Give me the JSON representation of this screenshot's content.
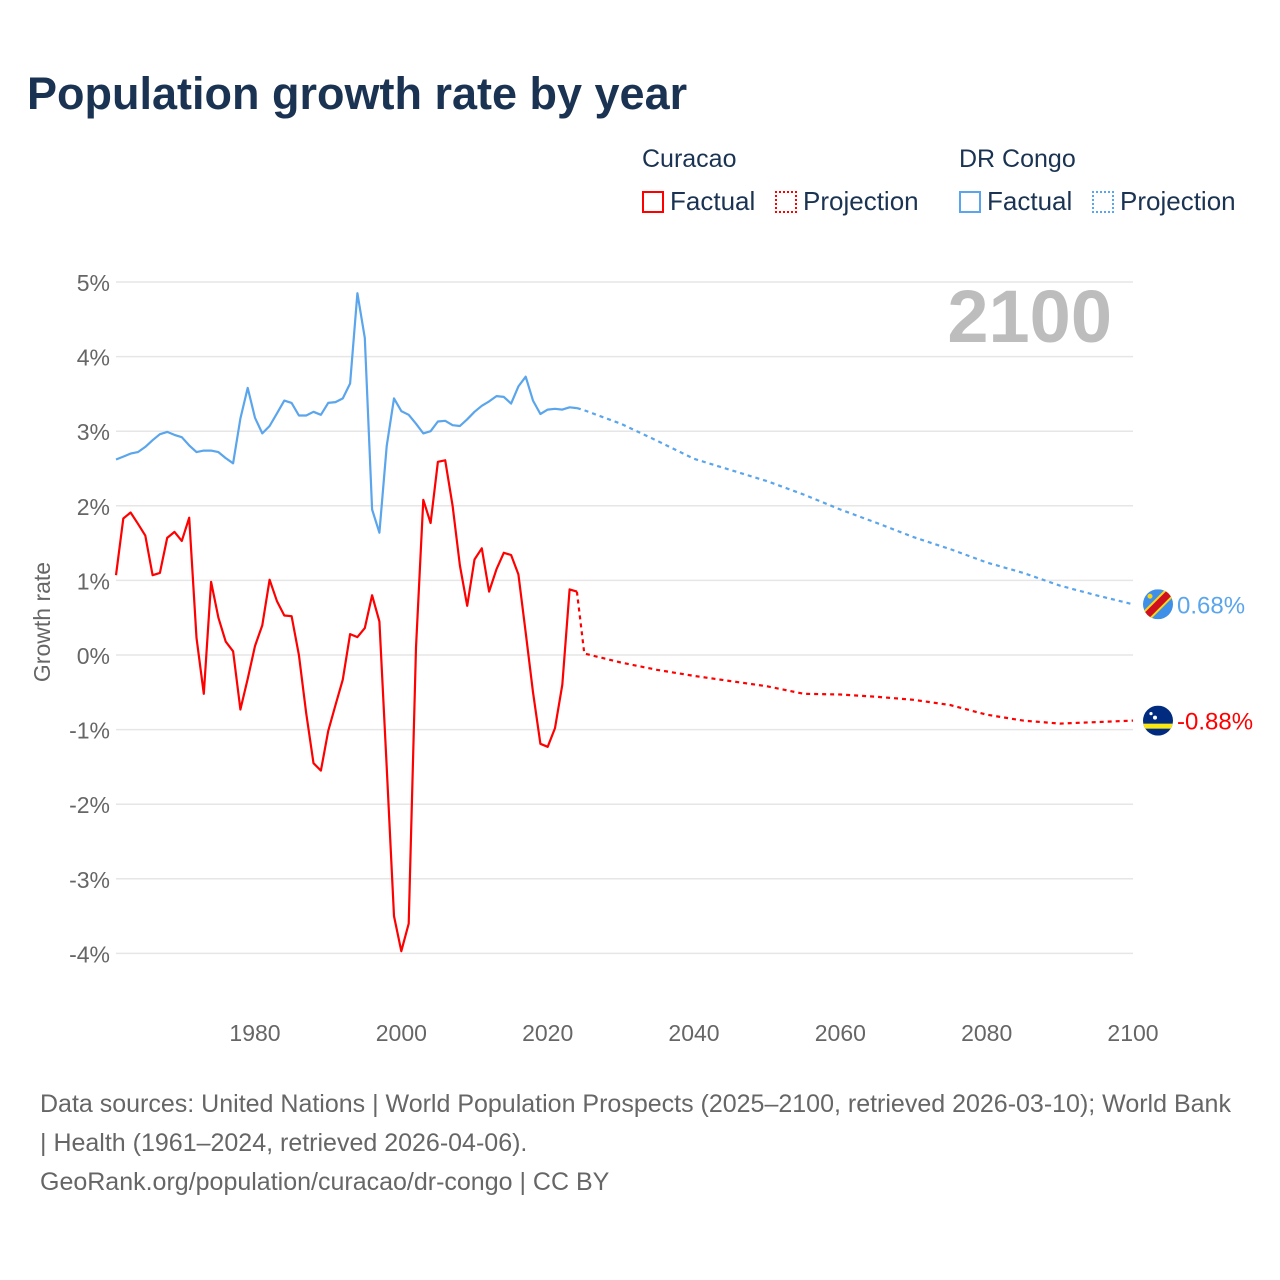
{
  "title": "Population growth rate by year",
  "legend": {
    "groups": [
      {
        "name": "Curacao",
        "color": "#ff0000",
        "factual": "Factual",
        "projection": "Projection"
      },
      {
        "name": "DR Congo",
        "color": "#5aa5ec",
        "factual": "Factual",
        "projection": "Projection"
      }
    ]
  },
  "chart_data": {
    "type": "line",
    "title": "Population growth rate by year",
    "ylabel": "Growth rate",
    "xlabel": "",
    "ylim": [
      -4.6,
      5
    ],
    "xlim": [
      1961,
      2100
    ],
    "yticks": [
      5,
      4,
      3,
      2,
      1,
      0,
      -1,
      -2,
      -3,
      -4
    ],
    "ytick_labels": [
      "5%",
      "4%",
      "3%",
      "2%",
      "1%",
      "0%",
      "-1%",
      "-2%",
      "-3%",
      "-4%"
    ],
    "xticks": [
      1980,
      2000,
      2020,
      2040,
      2060,
      2080,
      2100
    ],
    "xtick_labels": [
      "1980",
      "2000",
      "2020",
      "2040",
      "2060",
      "2080",
      "2100"
    ],
    "year_overlay": "2100",
    "grid": true,
    "series": [
      {
        "name": "Curacao Factual",
        "country": "Curacao",
        "kind": "factual",
        "color": "#ff0000",
        "x": [
          1961,
          1962,
          1963,
          1964,
          1965,
          1966,
          1967,
          1968,
          1969,
          1970,
          1971,
          1972,
          1973,
          1974,
          1975,
          1976,
          1977,
          1978,
          1979,
          1980,
          1981,
          1982,
          1983,
          1984,
          1985,
          1986,
          1987,
          1988,
          1989,
          1990,
          1991,
          1992,
          1993,
          1994,
          1995,
          1996,
          1997,
          1998,
          1999,
          2000,
          2001,
          2002,
          2003,
          2004,
          2005,
          2006,
          2007,
          2008,
          2009,
          2010,
          2011,
          2012,
          2013,
          2014,
          2015,
          2016,
          2017,
          2018,
          2019,
          2020,
          2021,
          2022,
          2023,
          2024
        ],
        "y": [
          1.07,
          1.83,
          1.91,
          1.76,
          1.6,
          1.07,
          1.1,
          1.57,
          1.65,
          1.53,
          1.84,
          0.23,
          -0.52,
          0.98,
          0.5,
          0.18,
          0.05,
          -0.73,
          -0.32,
          0.12,
          0.4,
          1.01,
          0.72,
          0.53,
          0.52,
          0.0,
          -0.78,
          -1.45,
          -1.55,
          -1.02,
          -0.67,
          -0.33,
          0.28,
          0.24,
          0.36,
          0.8,
          0.45,
          -1.5,
          -3.5,
          -3.97,
          -3.6,
          0.1,
          2.08,
          1.77,
          2.59,
          2.61,
          2.0,
          1.2,
          0.66,
          1.28,
          1.43,
          0.85,
          1.15,
          1.37,
          1.34,
          1.08,
          0.3,
          -0.5,
          -1.19,
          -1.23,
          -0.98,
          -0.4,
          0.88,
          0.85
        ]
      },
      {
        "name": "Curacao Projection",
        "country": "Curacao",
        "kind": "projection",
        "color": "#ff0000",
        "x": [
          2024,
          2025,
          2030,
          2035,
          2040,
          2045,
          2050,
          2055,
          2060,
          2065,
          2070,
          2075,
          2080,
          2085,
          2090,
          2095,
          2100
        ],
        "y": [
          0.85,
          0.02,
          -0.1,
          -0.2,
          -0.28,
          -0.35,
          -0.42,
          -0.52,
          -0.53,
          -0.56,
          -0.6,
          -0.67,
          -0.8,
          -0.88,
          -0.92,
          -0.9,
          -0.88
        ]
      },
      {
        "name": "DR Congo Factual",
        "country": "DR Congo",
        "kind": "factual",
        "color": "#5aa5ec",
        "x": [
          1961,
          1962,
          1963,
          1964,
          1965,
          1966,
          1967,
          1968,
          1969,
          1970,
          1971,
          1972,
          1973,
          1974,
          1975,
          1976,
          1977,
          1978,
          1979,
          1980,
          1981,
          1982,
          1983,
          1984,
          1985,
          1986,
          1987,
          1988,
          1989,
          1990,
          1991,
          1992,
          1993,
          1994,
          1995,
          1996,
          1997,
          1998,
          1999,
          2000,
          2001,
          2002,
          2003,
          2004,
          2005,
          2006,
          2007,
          2008,
          2009,
          2010,
          2011,
          2012,
          2013,
          2014,
          2015,
          2016,
          2017,
          2018,
          2019,
          2020,
          2021,
          2022,
          2023,
          2024
        ],
        "y": [
          2.62,
          2.66,
          2.7,
          2.72,
          2.79,
          2.88,
          2.96,
          2.99,
          2.95,
          2.92,
          2.81,
          2.72,
          2.74,
          2.74,
          2.72,
          2.64,
          2.57,
          3.17,
          3.58,
          3.18,
          2.97,
          3.07,
          3.24,
          3.41,
          3.38,
          3.21,
          3.21,
          3.26,
          3.22,
          3.38,
          3.39,
          3.44,
          3.64,
          4.85,
          4.25,
          1.95,
          1.64,
          2.8,
          3.44,
          3.27,
          3.22,
          3.1,
          2.97,
          3.0,
          3.13,
          3.14,
          3.08,
          3.07,
          3.16,
          3.26,
          3.34,
          3.4,
          3.47,
          3.46,
          3.37,
          3.6,
          3.73,
          3.41,
          3.23,
          3.29,
          3.3,
          3.29,
          3.32,
          3.31
        ]
      },
      {
        "name": "DR Congo Projection",
        "country": "DR Congo",
        "kind": "projection",
        "color": "#5aa5ec",
        "x": [
          2024,
          2025,
          2030,
          2035,
          2040,
          2045,
          2050,
          2055,
          2060,
          2065,
          2070,
          2075,
          2080,
          2085,
          2090,
          2095,
          2100
        ],
        "y": [
          3.31,
          3.28,
          3.1,
          2.87,
          2.63,
          2.48,
          2.33,
          2.15,
          1.95,
          1.77,
          1.58,
          1.42,
          1.24,
          1.1,
          0.93,
          0.8,
          0.68
        ]
      }
    ],
    "end_labels": [
      {
        "country": "DR Congo",
        "value": 0.68,
        "label": "0.68%",
        "color": "#5aa5ec",
        "flag": "dr-congo-flag"
      },
      {
        "country": "Curacao",
        "value": -0.88,
        "label": "-0.88%",
        "color": "#ff0000",
        "flag": "curacao-flag"
      }
    ]
  },
  "footer": {
    "sources": "Data sources: United Nations | World Population Prospects (2025–2100, retrieved 2026-03-10); World Bank | Health (1961–2024, retrieved 2026-04-06).",
    "link": "GeoRank.org/population/curacao/dr-congo | CC BY"
  }
}
